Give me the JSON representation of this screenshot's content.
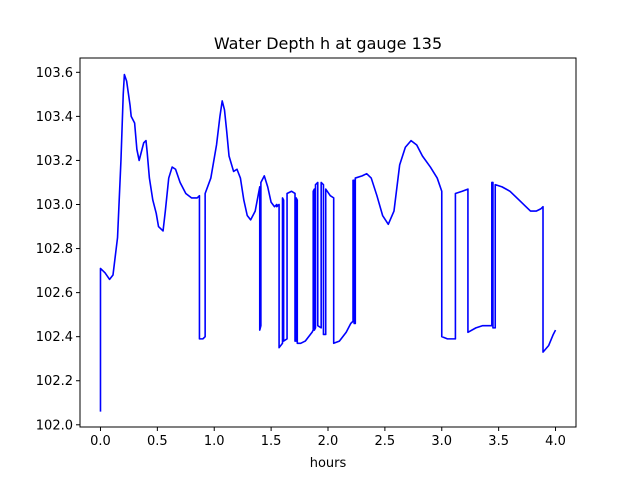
{
  "chart_data": {
    "type": "line",
    "title": "Water Depth h at gauge 135",
    "xlabel": "hours",
    "ylabel": "",
    "xlim": [
      -0.18,
      4.18
    ],
    "ylim": [
      101.99,
      103.665
    ],
    "xticks": [
      0.0,
      0.5,
      1.0,
      1.5,
      2.0,
      2.5,
      3.0,
      3.5,
      4.0
    ],
    "xtick_labels": [
      "0.0",
      "0.5",
      "1.0",
      "1.5",
      "2.0",
      "2.5",
      "3.0",
      "3.5",
      "4.0"
    ],
    "yticks": [
      102.0,
      102.2,
      102.4,
      102.6,
      102.8,
      103.0,
      103.2,
      103.4,
      103.6
    ],
    "ytick_labels": [
      "102.0",
      "102.2",
      "102.4",
      "102.6",
      "102.8",
      "103.0",
      "103.2",
      "103.4",
      "103.6"
    ],
    "grid": false,
    "series": [
      {
        "color": "#0000ff",
        "points": [
          [
            0.0,
            102.06
          ],
          [
            0.0,
            102.71
          ],
          [
            0.04,
            102.69
          ],
          [
            0.08,
            102.66
          ],
          [
            0.11,
            102.68
          ],
          [
            0.15,
            102.85
          ],
          [
            0.18,
            103.2
          ],
          [
            0.2,
            103.5
          ],
          [
            0.21,
            103.59
          ],
          [
            0.23,
            103.56
          ],
          [
            0.26,
            103.45
          ],
          [
            0.27,
            103.4
          ],
          [
            0.3,
            103.37
          ],
          [
            0.32,
            103.25
          ],
          [
            0.34,
            103.2
          ],
          [
            0.36,
            103.24
          ],
          [
            0.38,
            103.28
          ],
          [
            0.4,
            103.29
          ],
          [
            0.41,
            103.24
          ],
          [
            0.43,
            103.12
          ],
          [
            0.46,
            103.02
          ],
          [
            0.49,
            102.96
          ],
          [
            0.51,
            102.9
          ],
          [
            0.55,
            102.88
          ],
          [
            0.57,
            102.97
          ],
          [
            0.6,
            103.12
          ],
          [
            0.63,
            103.17
          ],
          [
            0.66,
            103.16
          ],
          [
            0.7,
            103.1
          ],
          [
            0.75,
            103.05
          ],
          [
            0.8,
            103.03
          ],
          [
            0.85,
            103.03
          ],
          [
            0.87,
            103.04
          ],
          [
            0.87,
            102.39
          ],
          [
            0.9,
            102.39
          ],
          [
            0.92,
            102.4
          ],
          [
            0.92,
            103.05
          ],
          [
            0.97,
            103.12
          ],
          [
            1.02,
            103.27
          ],
          [
            1.05,
            103.4
          ],
          [
            1.07,
            103.47
          ],
          [
            1.09,
            103.43
          ],
          [
            1.11,
            103.33
          ],
          [
            1.13,
            103.22
          ],
          [
            1.17,
            103.15
          ],
          [
            1.2,
            103.16
          ],
          [
            1.23,
            103.12
          ],
          [
            1.26,
            103.02
          ],
          [
            1.29,
            102.95
          ],
          [
            1.32,
            102.93
          ],
          [
            1.36,
            102.97
          ],
          [
            1.4,
            103.08
          ],
          [
            1.4,
            102.43
          ],
          [
            1.41,
            102.45
          ],
          [
            1.41,
            103.1
          ],
          [
            1.44,
            103.13
          ],
          [
            1.47,
            103.08
          ],
          [
            1.5,
            103.01
          ],
          [
            1.53,
            102.99
          ],
          [
            1.55,
            103.0
          ],
          [
            1.55,
            102.99
          ],
          [
            1.57,
            103.0
          ],
          [
            1.57,
            102.35
          ],
          [
            1.6,
            102.37
          ],
          [
            1.6,
            103.03
          ],
          [
            1.61,
            103.02
          ],
          [
            1.61,
            102.38
          ],
          [
            1.64,
            102.39
          ],
          [
            1.64,
            103.05
          ],
          [
            1.68,
            103.06
          ],
          [
            1.71,
            103.05
          ],
          [
            1.71,
            102.38
          ],
          [
            1.72,
            102.38
          ],
          [
            1.72,
            103.03
          ],
          [
            1.73,
            103.02
          ],
          [
            1.73,
            102.37
          ],
          [
            1.76,
            102.37
          ],
          [
            1.8,
            102.38
          ],
          [
            1.86,
            102.42
          ],
          [
            1.87,
            102.43
          ],
          [
            1.87,
            103.06
          ],
          [
            1.88,
            103.07
          ],
          [
            1.88,
            102.43
          ],
          [
            1.89,
            102.44
          ],
          [
            1.89,
            103.09
          ],
          [
            1.91,
            103.1
          ],
          [
            1.91,
            102.45
          ],
          [
            1.94,
            102.44
          ],
          [
            1.94,
            103.1
          ],
          [
            1.96,
            103.09
          ],
          [
            1.96,
            102.41
          ],
          [
            1.98,
            102.41
          ],
          [
            1.98,
            103.07
          ],
          [
            2.02,
            103.04
          ],
          [
            2.05,
            103.03
          ],
          [
            2.05,
            102.37
          ],
          [
            2.1,
            102.38
          ],
          [
            2.16,
            102.42
          ],
          [
            2.2,
            102.46
          ],
          [
            2.22,
            102.47
          ],
          [
            2.22,
            103.11
          ],
          [
            2.23,
            103.11
          ],
          [
            2.23,
            102.46
          ],
          [
            2.24,
            102.46
          ],
          [
            2.24,
            103.12
          ],
          [
            2.3,
            103.13
          ],
          [
            2.34,
            103.14
          ],
          [
            2.38,
            103.12
          ],
          [
            2.43,
            103.04
          ],
          [
            2.48,
            102.95
          ],
          [
            2.53,
            102.91
          ],
          [
            2.58,
            102.97
          ],
          [
            2.63,
            103.18
          ],
          [
            2.68,
            103.26
          ],
          [
            2.73,
            103.29
          ],
          [
            2.78,
            103.27
          ],
          [
            2.83,
            103.22
          ],
          [
            2.9,
            103.17
          ],
          [
            2.96,
            103.12
          ],
          [
            3.0,
            103.06
          ],
          [
            3.0,
            102.4
          ],
          [
            3.05,
            102.39
          ],
          [
            3.1,
            102.39
          ],
          [
            3.12,
            102.39
          ],
          [
            3.12,
            103.05
          ],
          [
            3.18,
            103.06
          ],
          [
            3.23,
            103.07
          ],
          [
            3.23,
            102.42
          ],
          [
            3.3,
            102.44
          ],
          [
            3.36,
            102.45
          ],
          [
            3.42,
            102.45
          ],
          [
            3.44,
            102.45
          ],
          [
            3.44,
            103.1
          ],
          [
            3.45,
            103.1
          ],
          [
            3.45,
            102.44
          ],
          [
            3.47,
            102.44
          ],
          [
            3.47,
            103.09
          ],
          [
            3.53,
            103.08
          ],
          [
            3.6,
            103.06
          ],
          [
            3.68,
            103.02
          ],
          [
            3.74,
            102.99
          ],
          [
            3.78,
            102.97
          ],
          [
            3.83,
            102.97
          ],
          [
            3.87,
            102.98
          ],
          [
            3.89,
            102.99
          ],
          [
            3.89,
            102.33
          ],
          [
            3.94,
            102.36
          ],
          [
            3.98,
            102.41
          ],
          [
            4.0,
            102.43
          ]
        ]
      }
    ]
  }
}
